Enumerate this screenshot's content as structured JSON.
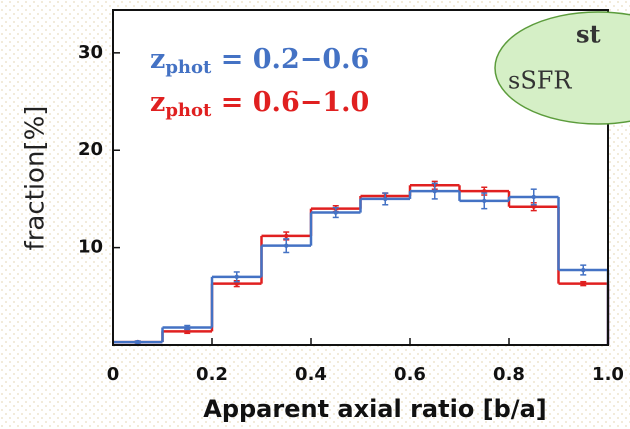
{
  "chart_data": {
    "type": "histogram",
    "xlabel": "Apparent axial ratio [b/a]",
    "ylabel": "fraction[%]",
    "bins": [
      0,
      0.1,
      0.2,
      0.3,
      0.4,
      0.5,
      0.6,
      0.7,
      0.8,
      0.9,
      1.0
    ],
    "series": [
      {
        "name": "zphot = 0.2−0.6",
        "color": "#4472c4",
        "values": [
          0.3,
          1.8,
          7.0,
          10.2,
          13.6,
          15.0,
          15.8,
          14.8,
          15.2,
          7.7
        ],
        "errors": [
          0.1,
          0.2,
          0.5,
          0.7,
          0.5,
          0.6,
          0.8,
          0.8,
          0.8,
          0.5
        ]
      },
      {
        "name": "zphot = 0.6−1.0",
        "color": "#e02020",
        "values": [
          0.3,
          1.4,
          6.3,
          11.2,
          14.0,
          15.3,
          16.4,
          15.8,
          14.2,
          6.3
        ],
        "errors": [
          0.1,
          0.2,
          0.3,
          0.4,
          0.3,
          0.3,
          0.4,
          0.4,
          0.4,
          0.2
        ]
      }
    ],
    "xlim": [
      0,
      1
    ],
    "ylim": [
      0,
      34.4
    ],
    "xticks": [
      0,
      0.2,
      0.4,
      0.6,
      0.8,
      {
        "value": 1,
        "label": "1.0"
      }
    ],
    "yticks": [
      10,
      20,
      30
    ],
    "annotations": [
      "st",
      "sSFR"
    ]
  }
}
